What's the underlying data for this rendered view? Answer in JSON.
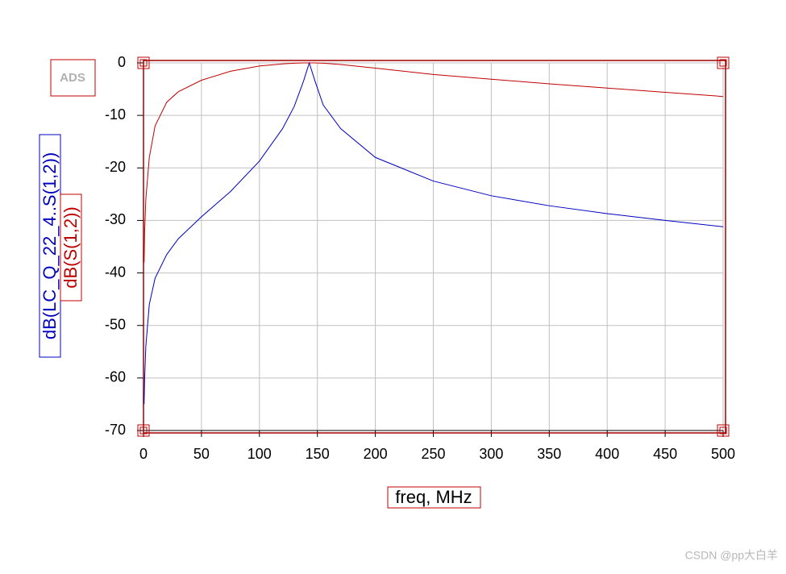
{
  "chart_data": {
    "type": "line",
    "logo": "ADS",
    "x_label": "freq, MHz",
    "x": [
      0.5,
      1,
      2,
      5,
      10,
      20,
      30,
      50,
      75,
      100,
      120,
      130,
      138,
      143,
      148,
      155,
      170,
      200,
      250,
      300,
      350,
      400,
      450,
      500
    ],
    "series": [
      {
        "name": "dB(LC_Q_22_4..S(1,2))",
        "color": "#0000c0",
        "values": [
          -65,
          -60,
          -54,
          -46,
          -41,
          -36.5,
          -33.5,
          -29.3,
          -24.5,
          -18.7,
          -12.5,
          -8.3,
          -3.5,
          0,
          -3.5,
          -8,
          -12.5,
          -18,
          -22.5,
          -25.3,
          -27.2,
          -28.7,
          -30,
          -31.2
        ]
      },
      {
        "name": "dB(S(1,2))",
        "color": "#c00000",
        "values": [
          -38,
          -32,
          -26,
          -18,
          -12,
          -7.5,
          -5.5,
          -3.3,
          -1.6,
          -0.6,
          -0.2,
          -0.05,
          0,
          0,
          0,
          -0.05,
          -0.3,
          -1,
          -2.2,
          -3.1,
          -4,
          -4.8,
          -5.6,
          -6.4
        ]
      }
    ],
    "xlim": [
      0,
      500
    ],
    "xticks": [
      0,
      50,
      100,
      150,
      200,
      250,
      300,
      350,
      400,
      450,
      500
    ],
    "ylim": [
      -70,
      0
    ],
    "yticks": [
      0,
      -10,
      -20,
      -30,
      -40,
      -50,
      -60,
      -70
    ],
    "grid": true,
    "watermark": "CSDN @pp大白羊"
  }
}
